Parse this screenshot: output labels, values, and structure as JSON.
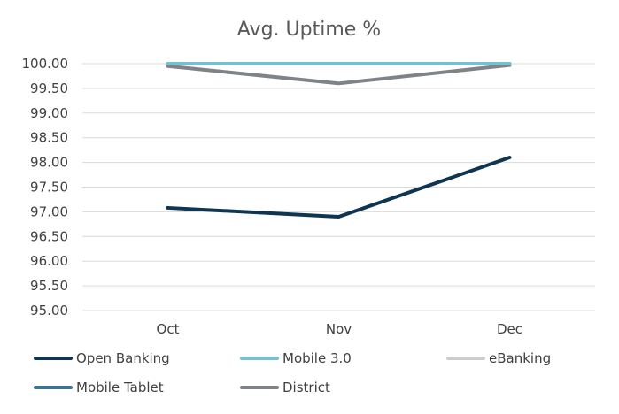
{
  "chart_data": {
    "type": "line",
    "title": "Avg. Uptime %",
    "xlabel": "",
    "ylabel": "",
    "categories": [
      "Oct",
      "Nov",
      "Dec"
    ],
    "ylim": [
      95.0,
      100.0
    ],
    "yticks": [
      "95.00",
      "95.50",
      "96.00",
      "96.50",
      "97.00",
      "97.50",
      "98.00",
      "98.50",
      "99.00",
      "99.50",
      "100.00"
    ],
    "grid": true,
    "legend_position": "bottom",
    "series": [
      {
        "name": "Open Banking",
        "color": "#0e3551",
        "values": [
          97.08,
          96.9,
          98.1
        ]
      },
      {
        "name": "Mobile 3.0",
        "color": "#78bfd0",
        "values": [
          100.0,
          100.0,
          100.0
        ]
      },
      {
        "name": "eBanking",
        "color": "#cccccc",
        "values": [
          100.0,
          100.0,
          100.0
        ]
      },
      {
        "name": "Mobile Tablet",
        "color": "#3d7591",
        "values": [
          100.0,
          100.0,
          100.0
        ]
      },
      {
        "name": "District",
        "color": "#7f8387",
        "values": [
          99.95,
          99.6,
          99.97
        ]
      }
    ]
  }
}
